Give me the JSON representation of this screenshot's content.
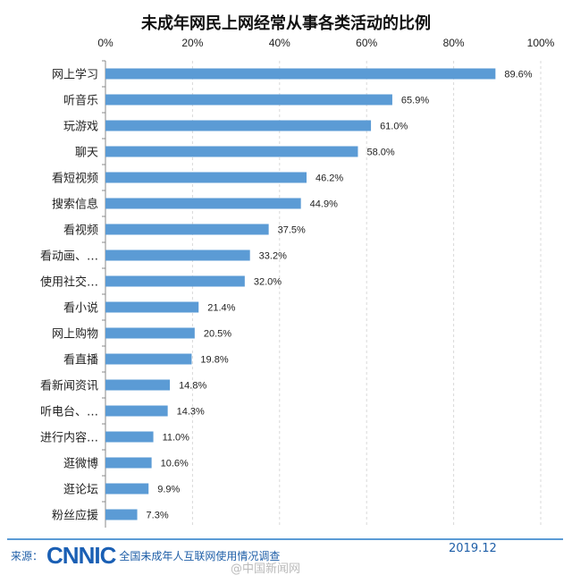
{
  "chart_data": {
    "type": "bar",
    "orientation": "horizontal",
    "title": "未成年网民上网经常从事各类活动的比例",
    "categories": [
      "网上学习",
      "听音乐",
      "玩游戏",
      "聊天",
      "看短视频",
      "搜索信息",
      "看视频",
      "看动画、…",
      "使用社交…",
      "看小说",
      "网上购物",
      "看直播",
      "看新闻资讯",
      "听电台、…",
      "进行内容…",
      "逛微博",
      "逛论坛",
      "粉丝应援"
    ],
    "values": [
      89.6,
      65.9,
      61.0,
      58.0,
      46.2,
      44.9,
      37.5,
      33.2,
      32.0,
      21.4,
      20.5,
      19.8,
      14.8,
      14.3,
      11.0,
      10.6,
      9.9,
      7.3
    ],
    "data_labels": [
      "89.6%",
      "65.9%",
      "61.0%",
      "58.0%",
      "46.2%",
      "44.9%",
      "37.5%",
      "33.2%",
      "32.0%",
      "21.4%",
      "20.5%",
      "19.8%",
      "14.8%",
      "14.3%",
      "11.0%",
      "10.6%",
      "9.9%",
      "7.3%"
    ],
    "xlim": [
      0,
      100
    ],
    "x_ticks": [
      "0%",
      "20%",
      "40%",
      "60%",
      "80%",
      "100%"
    ],
    "x_axis_position": "top",
    "grid": "vertical dashed",
    "bar_color": "#5b9bd5"
  },
  "footer": {
    "source_label": "来源：",
    "logo": "CNNIC",
    "source_text": "全国未成年人互联网使用情况调查",
    "date": "2019.12",
    "watermark": "@中国新闻网"
  }
}
